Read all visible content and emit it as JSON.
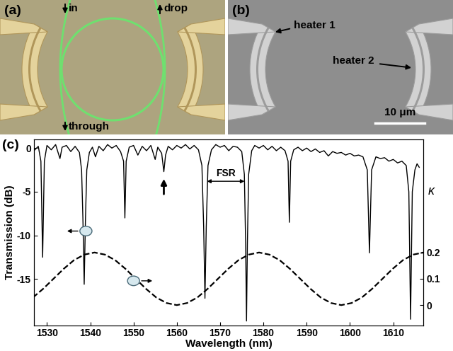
{
  "panels": [
    {
      "label": "(a)",
      "input": "in",
      "drop": "drop",
      "through": "through"
    },
    {
      "label": "(b)",
      "heaters": [
        "heater 1",
        "heater 2"
      ],
      "scale_bar": "10 μm"
    }
  ],
  "chart_data": {
    "type": "line",
    "panel_label": "(c)",
    "xlabel": "Wavelength (nm)",
    "ylabel": "Transmission (dB)",
    "y2label": "κ",
    "xlim": [
      1527,
      1617
    ],
    "xticks": [
      1530,
      1540,
      1550,
      1560,
      1570,
      1580,
      1590,
      1600,
      1610
    ],
    "ylim": [
      -20.3,
      1
    ],
    "yticks": [
      -15,
      -10,
      -5,
      0
    ],
    "y2lim": [
      -0.077,
      0.63
    ],
    "y2ticks": [
      0,
      0.1,
      0.2
    ],
    "grid": false,
    "series": [
      {
        "color": "#000000",
        "line_style": "solid",
        "x": [
          1527,
          1528,
          1528.6,
          1529,
          1529.4,
          1530,
          1531,
          1532,
          1533,
          1533.5,
          1534.5,
          1535.5,
          1536.5,
          1537.5,
          1538,
          1538.3,
          1538.6,
          1538.9,
          1539.2,
          1539.8,
          1540.5,
          1541.2,
          1542,
          1543,
          1544,
          1545,
          1546,
          1547,
          1547.7,
          1548,
          1548.3,
          1549,
          1550,
          1551,
          1552,
          1553,
          1554,
          1555,
          1555.6,
          1556.5,
          1557,
          1557.4,
          1558,
          1559,
          1560,
          1561,
          1562,
          1563,
          1564,
          1565,
          1565.8,
          1566.2,
          1566.5,
          1566.8,
          1567.2,
          1568,
          1569,
          1570,
          1571,
          1572,
          1573,
          1574,
          1575,
          1575.6,
          1575.9,
          1576.1,
          1576.3,
          1576.6,
          1577.3,
          1578,
          1579,
          1580,
          1581,
          1582,
          1583,
          1584,
          1585,
          1585.7,
          1586,
          1586.3,
          1587,
          1588,
          1589,
          1590,
          1591,
          1592,
          1593,
          1594,
          1595,
          1596,
          1597,
          1598,
          1599,
          1600,
          1601,
          1602,
          1603,
          1604,
          1604.5,
          1605,
          1606,
          1607,
          1608,
          1609,
          1610,
          1611,
          1612,
          1613,
          1613.6,
          1614,
          1614.4,
          1615,
          1615.5,
          1616
        ],
        "values": [
          -0.3,
          0.2,
          -1.5,
          -12.5,
          -1.5,
          0.3,
          -0.2,
          0.4,
          -1.2,
          0.1,
          0.3,
          -0.4,
          0.2,
          -0.5,
          -2.5,
          -8,
          -15.6,
          -8,
          -2.5,
          -0.5,
          0.1,
          -1.0,
          0.2,
          -0.3,
          0.4,
          0.0,
          0.3,
          -0.4,
          -1.5,
          -8,
          -1.5,
          0.1,
          0.3,
          -0.8,
          0.2,
          -0.3,
          0.3,
          -1.3,
          0.1,
          -0.6,
          -2.7,
          -0.8,
          0.2,
          -0.2,
          0.3,
          0.0,
          0.4,
          -0.1,
          0.3,
          -0.2,
          -2,
          -9,
          -17.2,
          -9,
          -2,
          -0.2,
          0.4,
          0.1,
          0.3,
          -0.3,
          0.2,
          0.1,
          -0.4,
          -3,
          -11,
          -19.8,
          -11,
          -3,
          -0.3,
          0.3,
          0.0,
          0.3,
          -0.2,
          0.2,
          -0.3,
          0.1,
          -0.3,
          -1.5,
          -8.5,
          -1.5,
          -0.2,
          0.1,
          -0.3,
          0.0,
          -0.4,
          -0.1,
          -0.5,
          -0.3,
          -0.9,
          -0.4,
          -0.6,
          -0.5,
          -0.8,
          -0.6,
          -0.9,
          -0.8,
          -1.0,
          -2.5,
          -12,
          -2.5,
          -1.0,
          -1.2,
          -1.1,
          -1.5,
          -1.3,
          -1.7,
          -1.5,
          -2.0,
          -5,
          -19.6,
          -5,
          -2.5,
          -1.8,
          -2.2
        ]
      },
      {
        "color": "#000000",
        "line_style": "dashed",
        "axis": "y2",
        "x": [
          1526.75,
          1529.125,
          1531.5,
          1533.875,
          1536.25,
          1538.625,
          1541,
          1543.375,
          1545.75,
          1548.125,
          1550.5,
          1552.875,
          1555.25,
          1557.625,
          1560,
          1562.375,
          1564.75,
          1567.125,
          1569.5,
          1571.875,
          1574.25,
          1576.625,
          1579,
          1581.375,
          1583.75,
          1586.125,
          1588.5,
          1590.875,
          1593.25,
          1595.625,
          1598,
          1600.375,
          1602.75,
          1605.125,
          1607.5,
          1609.875,
          1612.25,
          1614.625,
          1617
        ],
        "values": [
          0.029,
          0.062,
          0.1,
          0.138,
          0.171,
          0.192,
          0.2,
          0.192,
          0.171,
          0.138,
          0.1,
          0.062,
          0.029,
          0.008,
          0,
          0.008,
          0.029,
          0.062,
          0.1,
          0.138,
          0.171,
          0.192,
          0.2,
          0.192,
          0.171,
          0.138,
          0.1,
          0.062,
          0.029,
          0.008,
          0,
          0.008,
          0.029,
          0.062,
          0.1,
          0.138,
          0.171,
          0.192,
          0.2
        ]
      }
    ],
    "annotations": [
      {
        "type": "arrow",
        "x": 1557,
        "y": [
          -5.5,
          -3.3
        ]
      },
      {
        "type": "dimension",
        "text": "FSR",
        "x": [
          1566.5,
          1576.1
        ],
        "y": -3.8
      }
    ],
    "axis_pointers": [
      {
        "x": 1539,
        "y": -9.5,
        "axis": "y"
      },
      {
        "x": 1550,
        "y": -15.2,
        "axis": "y2"
      }
    ]
  }
}
